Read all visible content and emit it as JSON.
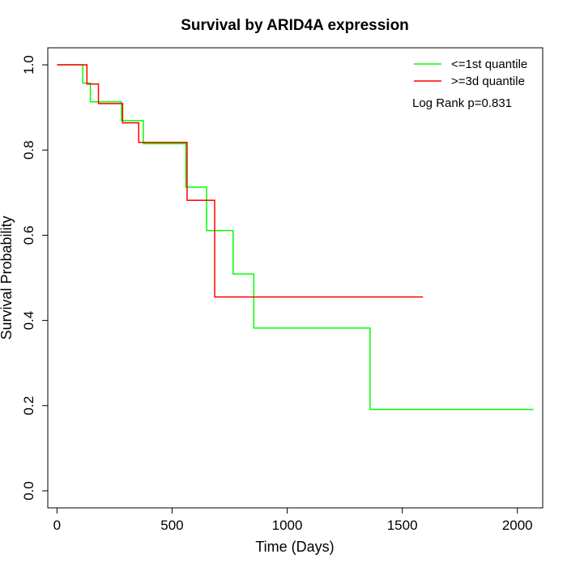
{
  "chart_data": {
    "type": "line",
    "title": "Survival by ARID4A expression",
    "xlabel": "Time (Days)",
    "ylabel": "Survival Probability",
    "xlim": [
      -40,
      2110
    ],
    "ylim": [
      -0.04,
      1.04
    ],
    "xticks": [
      "0",
      "500",
      "1000",
      "1500",
      "2000"
    ],
    "xtick_values": [
      0,
      500,
      1000,
      1500,
      2000
    ],
    "yticks": [
      "0.0",
      "0.2",
      "0.4",
      "0.6",
      "0.8",
      "1.0"
    ],
    "ytick_values": [
      0,
      0.2,
      0.4,
      0.6,
      0.8,
      1.0
    ],
    "grid": false,
    "legend_position": "top-right",
    "annotation": "Log Rank p=0.831",
    "series": [
      {
        "name": "<=1st quantile",
        "color": "#00ff00",
        "step": true,
        "x": [
          0,
          112,
          145,
          280,
          375,
          560,
          650,
          765,
          855,
          1360,
          2070
        ],
        "y": [
          1.0,
          0.957,
          0.913,
          0.869,
          0.815,
          0.713,
          0.611,
          0.509,
          0.382,
          0.191,
          0.191
        ]
      },
      {
        "name": ">=3d quantile",
        "color": "#ff0000",
        "step": true,
        "x": [
          0,
          130,
          180,
          285,
          355,
          565,
          685,
          1590
        ],
        "y": [
          1.0,
          0.955,
          0.909,
          0.864,
          0.818,
          0.682,
          0.455,
          0.455
        ]
      }
    ]
  }
}
